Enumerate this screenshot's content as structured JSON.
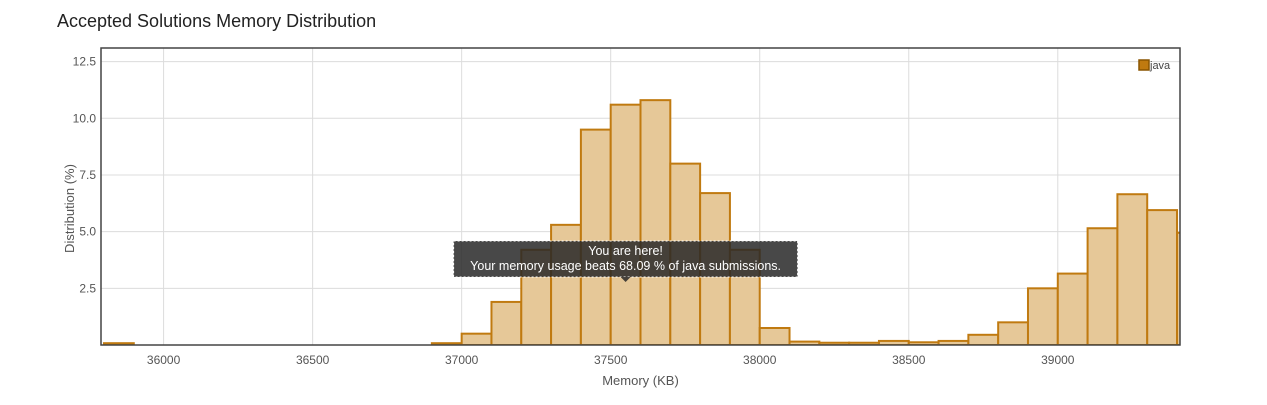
{
  "page": {
    "title": "Accepted Solutions Memory Distribution"
  },
  "chart_data": {
    "type": "bar",
    "xlabel": "Memory (KB)",
    "ylabel": "Distribution (%)",
    "xlim": [
      35790,
      39410
    ],
    "ylim": [
      0,
      13.1
    ],
    "x_ticks": [
      36000,
      36500,
      37000,
      37500,
      38000,
      38500,
      39000
    ],
    "y_ticks": [
      2.5,
      5.0,
      7.5,
      10.0,
      12.5
    ],
    "y_tick_labels": [
      "2.5",
      "5.0",
      "7.5",
      "10.0",
      "12.5"
    ],
    "grid": true,
    "legend_position": "top-right",
    "bin_width": 100,
    "series": [
      {
        "name": "java",
        "color": "#c07a10",
        "fill": "#e6c898",
        "bins": [
          {
            "x": 35800,
            "y": 0.08
          },
          {
            "x": 36900,
            "y": 0.08
          },
          {
            "x": 37000,
            "y": 0.5
          },
          {
            "x": 37100,
            "y": 1.9
          },
          {
            "x": 37200,
            "y": 4.2
          },
          {
            "x": 37300,
            "y": 5.3
          },
          {
            "x": 37400,
            "y": 9.5
          },
          {
            "x": 37500,
            "y": 10.6
          },
          {
            "x": 37600,
            "y": 10.8
          },
          {
            "x": 37700,
            "y": 8.0
          },
          {
            "x": 37800,
            "y": 6.7
          },
          {
            "x": 37900,
            "y": 4.2
          },
          {
            "x": 38000,
            "y": 0.75
          },
          {
            "x": 38100,
            "y": 0.15
          },
          {
            "x": 38200,
            "y": 0.1
          },
          {
            "x": 38300,
            "y": 0.1
          },
          {
            "x": 38400,
            "y": 0.18
          },
          {
            "x": 38500,
            "y": 0.12
          },
          {
            "x": 38600,
            "y": 0.18
          },
          {
            "x": 38700,
            "y": 0.45
          },
          {
            "x": 38800,
            "y": 1.0
          },
          {
            "x": 38900,
            "y": 2.5
          },
          {
            "x": 39000,
            "y": 3.15
          },
          {
            "x": 39100,
            "y": 5.15
          },
          {
            "x": 39200,
            "y": 6.65
          },
          {
            "x": 39300,
            "y": 5.95
          },
          {
            "x": 39400,
            "y": 4.95
          }
        ]
      }
    ],
    "annotation": {
      "line1": "You are here!",
      "line2": "Your memory usage beats 68.09 % of java submissions.",
      "x": 37550
    }
  }
}
